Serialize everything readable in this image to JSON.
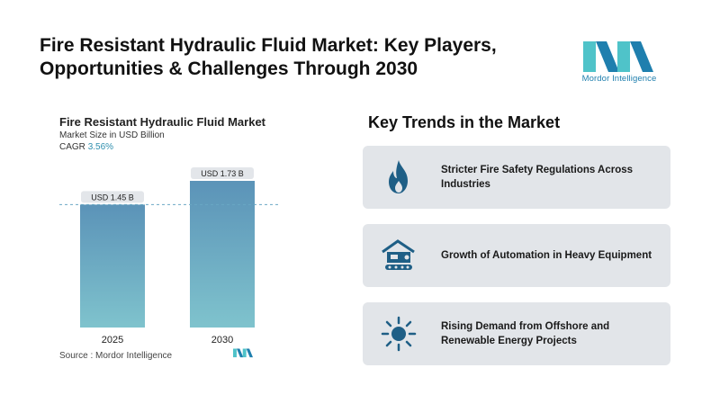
{
  "header": {
    "title_line1": "Fire Resistant Hydraulic Fluid Market: Key Players,",
    "title_line2": "Opportunities & Challenges Through 2030",
    "logo_text": "Mordor Intelligence",
    "brand_colors": {
      "teal": "#4fc3c9",
      "blue": "#1f7fae"
    }
  },
  "chart_data": {
    "type": "bar",
    "title": "Fire Resistant Hydraulic Fluid Market",
    "subtitle": "Market Size in USD Billion",
    "cagr_label": "CAGR",
    "cagr_value": "3.56%",
    "categories": [
      "2025",
      "2030"
    ],
    "values": [
      1.45,
      1.73
    ],
    "data_labels": [
      "USD 1.45 B",
      "USD 1.73 B"
    ],
    "ylim": [
      0,
      1.9
    ],
    "reference_line": 1.45,
    "bar_gradient": {
      "top": "#5b93b8",
      "bottom": "#7fc3cd"
    },
    "label_bg": "#e3e6ea",
    "grid": false,
    "legend": "none"
  },
  "source": {
    "label": "Source :",
    "text": "Mordor Intelligence"
  },
  "trends": {
    "title": "Key Trends in the Market",
    "items": [
      {
        "icon": "flame-icon",
        "text": "Stricter Fire Safety Regulations Across Industries"
      },
      {
        "icon": "excavator-icon",
        "text": "Growth of Automation in Heavy Equipment"
      },
      {
        "icon": "sun-icon",
        "text": "Rising Demand from Offshore and Renewable Energy Projects"
      }
    ],
    "icon_color": "#1f5f86"
  }
}
